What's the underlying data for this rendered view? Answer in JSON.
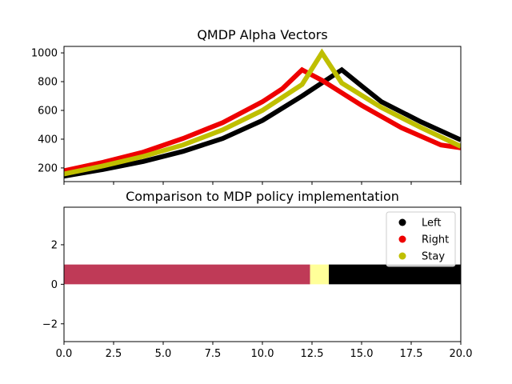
{
  "chart_data": [
    {
      "type": "line",
      "title": "QMDP Alpha Vectors",
      "xlabel": "",
      "ylabel": "",
      "xlim": [
        0,
        20
      ],
      "ylim": [
        105,
        1045
      ],
      "yticks": [
        200,
        400,
        600,
        800,
        1000
      ],
      "grid": false,
      "series": [
        {
          "color": "#000000",
          "points": [
            [
              0,
              143
            ],
            [
              2,
              190
            ],
            [
              4,
              245
            ],
            [
              6,
              315
            ],
            [
              8,
              405
            ],
            [
              10,
              530
            ],
            [
              12,
              700
            ],
            [
              14,
              882
            ],
            [
              15,
              770
            ],
            [
              16,
              660
            ],
            [
              18,
              520
            ],
            [
              20,
              395
            ]
          ]
        },
        {
          "color": "#ee0000",
          "points": [
            [
              0,
              180
            ],
            [
              2,
              240
            ],
            [
              4,
              310
            ],
            [
              6,
              405
            ],
            [
              8,
              515
            ],
            [
              10,
              660
            ],
            [
              11,
              750
            ],
            [
              12,
              882
            ],
            [
              13,
              810
            ],
            [
              15,
              635
            ],
            [
              17,
              480
            ],
            [
              19,
              360
            ],
            [
              20,
              340
            ]
          ]
        },
        {
          "color": "#bfbf00",
          "points": [
            [
              0,
              158
            ],
            [
              2,
              215
            ],
            [
              4,
              280
            ],
            [
              6,
              360
            ],
            [
              8,
              465
            ],
            [
              10,
              600
            ],
            [
              12,
              780
            ],
            [
              13,
              1000
            ],
            [
              14,
              790
            ],
            [
              16,
              620
            ],
            [
              18,
              480
            ],
            [
              20,
              350
            ]
          ]
        }
      ]
    },
    {
      "type": "bar",
      "title": "Comparison to MDP policy implementation",
      "xlabel": "",
      "ylabel": "",
      "xlim": [
        0,
        20
      ],
      "ylim": [
        -2.9,
        3.9
      ],
      "xticks": [
        "0.0",
        "2.5",
        "5.0",
        "7.5",
        "10.0",
        "12.5",
        "15.0",
        "17.5",
        "20.0"
      ],
      "yticks": [
        "−2",
        "0",
        "2"
      ],
      "segments": [
        {
          "x0": 0,
          "x1": 12.4,
          "y0": 0,
          "y1": 1,
          "color": "#bf3a57"
        },
        {
          "x0": 12.4,
          "x1": 13.35,
          "y0": 0,
          "y1": 1,
          "color": "#ffff99"
        },
        {
          "x0": 13.35,
          "x1": 20,
          "y0": 0,
          "y1": 1,
          "color": "#000000"
        }
      ],
      "legend": {
        "placement": "top-right",
        "entries": [
          {
            "label": "Left",
            "color": "#000000"
          },
          {
            "label": "Right",
            "color": "#ee0000"
          },
          {
            "label": "Stay",
            "color": "#bfbf00"
          }
        ]
      }
    }
  ]
}
